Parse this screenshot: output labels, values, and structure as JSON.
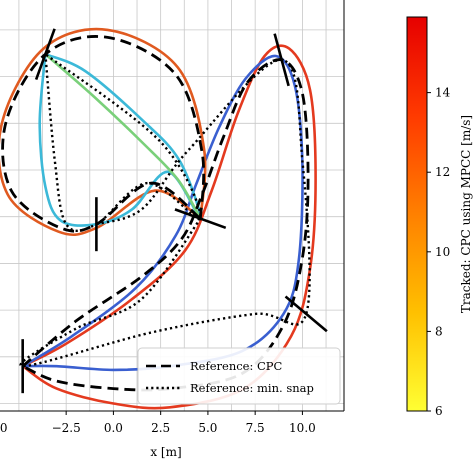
{
  "chart_data": {
    "type": "line",
    "title": "",
    "xlabel": "x [m]",
    "ylabel": "",
    "xlim": [
      -6.0,
      12.2
    ],
    "ylim": [
      -5.2,
      5.8
    ],
    "grid": true,
    "x_ticks": [
      -2.5,
      0.0,
      2.5,
      5.0,
      7.5,
      10.0
    ],
    "x_tick_labels": [
      "−2.5",
      "0.0",
      "2.5",
      "5.0",
      "7.5",
      "10.0"
    ],
    "partial_left_tick_label": ".0",
    "legend": {
      "placement": "bottom-right",
      "entries": [
        {
          "label": "Reference: CPC",
          "style": "dashed"
        },
        {
          "label": "Reference: min. snap",
          "style": "dotted"
        }
      ]
    },
    "colorbar": {
      "label": "Tracked: CPC using MPCC [m/s]",
      "range": [
        6,
        15.9
      ],
      "ticks": [
        6,
        8,
        10,
        12,
        14
      ],
      "colors": [
        "#ffff33",
        "#ffc000",
        "#ff8000",
        "#ff3a00",
        "#e60000"
      ]
    },
    "gates": [
      {
        "x": -3.6,
        "y": 4.35
      },
      {
        "x": 8.9,
        "y": 4.2
      },
      {
        "x": -0.9,
        "y": -0.2
      },
      {
        "x": 4.6,
        "y": -0.05
      },
      {
        "x": 10.2,
        "y": -2.6
      },
      {
        "x": -4.8,
        "y": -4.0
      }
    ],
    "series": [
      {
        "name": "Reference: CPC",
        "style": "dashed",
        "color": "#000000",
        "points": [
          [
            -4.8,
            -4.0
          ],
          [
            -2.0,
            -2.8
          ],
          [
            1.5,
            -1.6
          ],
          [
            3.6,
            -0.6
          ],
          [
            4.7,
            0.6
          ],
          [
            5.8,
            2.1
          ],
          [
            7.1,
            3.6
          ],
          [
            8.9,
            4.2
          ],
          [
            10.0,
            3.3
          ],
          [
            10.3,
            1.0
          ],
          [
            10.0,
            -1.1
          ],
          [
            9.0,
            -2.9
          ],
          [
            6.8,
            -4.2
          ],
          [
            3.0,
            -4.6
          ],
          [
            0.0,
            -4.6
          ],
          [
            -3.0,
            -4.4
          ],
          [
            -4.8,
            -4.0
          ]
        ]
      },
      {
        "name": "Reference: CPC (loop)",
        "style": "dashed",
        "color": "#000000",
        "points": [
          [
            4.6,
            -0.05
          ],
          [
            4.7,
            1.7
          ],
          [
            3.3,
            3.8
          ],
          [
            -0.3,
            4.8
          ],
          [
            -3.6,
            4.35
          ],
          [
            -5.7,
            2.5
          ],
          [
            -5.4,
            0.7
          ],
          [
            -2.8,
            -0.3
          ],
          [
            -0.9,
            -0.2
          ],
          [
            2.0,
            0.9
          ],
          [
            4.6,
            -0.05
          ]
        ]
      },
      {
        "name": "Reference: min. snap",
        "style": "dotted",
        "color": "#000000",
        "points": [
          [
            -3.6,
            4.35
          ],
          [
            -3.1,
            1.5
          ],
          [
            -2.5,
            -0.2
          ],
          [
            -0.9,
            -0.2
          ],
          [
            1.8,
            0.9
          ],
          [
            4.6,
            -0.05
          ],
          [
            2.5,
            2.0
          ],
          [
            -3.6,
            4.35
          ]
        ]
      },
      {
        "name": "Reference: min. snap (2)",
        "style": "dotted",
        "color": "#000000",
        "points": [
          [
            -0.9,
            -0.2
          ],
          [
            1.5,
            0.2
          ],
          [
            4.0,
            1.8
          ],
          [
            8.9,
            4.2
          ],
          [
            10.0,
            1.5
          ],
          [
            10.2,
            -2.6
          ],
          [
            7.5,
            -2.6
          ],
          [
            2.0,
            -3.1
          ],
          [
            -4.8,
            -4.0
          ],
          [
            -2.0,
            -3.0
          ],
          [
            1.5,
            -2.2
          ],
          [
            4.6,
            -0.05
          ]
        ]
      },
      {
        "name": "Tracked (fast)",
        "style": "solid",
        "color": "#e43a1f",
        "points": [
          [
            -4.8,
            -4.0
          ],
          [
            -2.5,
            -3.4
          ],
          [
            1.0,
            -2.2
          ],
          [
            3.8,
            -0.9
          ],
          [
            5.2,
            0.7
          ],
          [
            6.6,
            2.8
          ],
          [
            8.0,
            4.3
          ],
          [
            9.3,
            4.5
          ],
          [
            10.4,
            3.4
          ],
          [
            10.7,
            1.0
          ],
          [
            10.4,
            -1.4
          ],
          [
            9.4,
            -3.2
          ],
          [
            6.9,
            -4.6
          ],
          [
            3.0,
            -5.1
          ],
          [
            0.0,
            -5.0
          ],
          [
            -3.0,
            -4.6
          ],
          [
            -4.8,
            -4.0
          ]
        ]
      },
      {
        "name": "Tracked (slow)",
        "style": "solid",
        "color": "#3a5fd0",
        "points": [
          [
            -4.8,
            -4.0
          ],
          [
            -2.2,
            -3.2
          ],
          [
            1.2,
            -1.9
          ],
          [
            3.3,
            -0.5
          ],
          [
            4.4,
            0.9
          ],
          [
            5.6,
            2.4
          ],
          [
            7.0,
            3.7
          ],
          [
            8.6,
            4.3
          ],
          [
            9.6,
            3.5
          ],
          [
            10.0,
            1.4
          ],
          [
            9.8,
            -1.2
          ],
          [
            9.0,
            -2.6
          ],
          [
            6.8,
            -3.6
          ],
          [
            3.0,
            -4.0
          ],
          [
            0.0,
            -4.1
          ],
          [
            -3.0,
            -4.0
          ],
          [
            -4.8,
            -4.0
          ]
        ]
      },
      {
        "name": "Tracked loop (outer)",
        "style": "solid",
        "color": "#e05a20",
        "points": [
          [
            4.6,
            -0.05
          ],
          [
            4.8,
            1.8
          ],
          [
            3.4,
            4.0
          ],
          [
            -0.3,
            5.0
          ],
          [
            -3.7,
            4.5
          ],
          [
            -5.9,
            2.5
          ],
          [
            -5.6,
            0.6
          ],
          [
            -2.9,
            -0.4
          ],
          [
            -0.9,
            -0.3
          ],
          [
            2.2,
            0.7
          ],
          [
            4.6,
            -0.05
          ]
        ]
      },
      {
        "name": "Tracked loop (inner)",
        "style": "solid",
        "color": "#3cb9d8",
        "points": [
          [
            -3.6,
            4.35
          ],
          [
            -3.9,
            2.5
          ],
          [
            -3.6,
            0.8
          ],
          [
            -2.8,
            -0.1
          ],
          [
            -0.9,
            -0.2
          ],
          [
            1.0,
            0.2
          ],
          [
            2.9,
            1.2
          ],
          [
            4.6,
            -0.05
          ],
          [
            3.5,
            1.5
          ],
          [
            1.5,
            2.6
          ],
          [
            -1.5,
            3.9
          ],
          [
            -3.6,
            4.35
          ]
        ]
      },
      {
        "name": "Tracked loop (mid)",
        "style": "solid",
        "color": "#7ad07a",
        "points": [
          [
            -3.6,
            4.35
          ],
          [
            -1.0,
            3.2
          ],
          [
            1.5,
            2.0
          ],
          [
            3.4,
            1.0
          ],
          [
            4.6,
            -0.05
          ]
        ]
      }
    ]
  }
}
